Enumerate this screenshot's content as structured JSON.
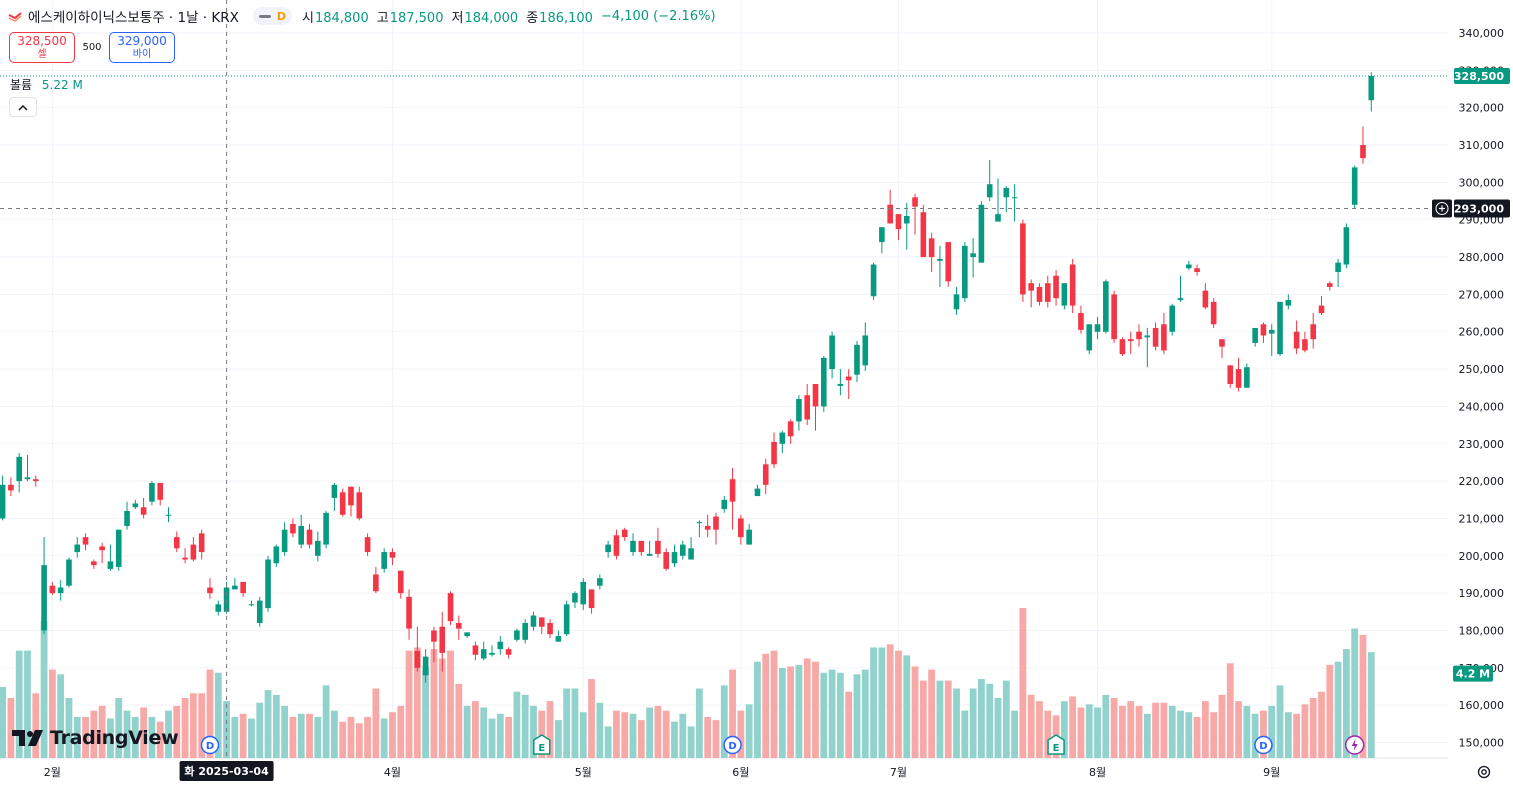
{
  "header": {
    "symbol_title": "에스케이하이닉스보통주 · 1날 · KRX",
    "badge": "D",
    "ohlc": [
      {
        "key": "시",
        "value": "184,800",
        "tone": "up"
      },
      {
        "key": "고",
        "value": "187,500",
        "tone": "up"
      },
      {
        "key": "저",
        "value": "184,000",
        "tone": "up"
      },
      {
        "key": "종",
        "value": "186,100",
        "tone": "up"
      }
    ],
    "change": "−4,100 (−2.16%)"
  },
  "trade": {
    "sell_price": "328,500",
    "sell_label": "셀",
    "quantity": "500",
    "buy_price": "329,000",
    "buy_label": "바이"
  },
  "volume_legend": {
    "label": "볼륨",
    "value": "5.22 M"
  },
  "collapse_icon": "chevron-up-icon",
  "logo_text": "TradingView",
  "colors": {
    "up": "#089981",
    "down": "#f23645",
    "up_vol": "#92d2cc",
    "down_vol": "#f7a9a7",
    "grid": "#f0f3fa",
    "text": "#131722"
  },
  "chart_data": {
    "type": "candlestick",
    "symbol": "에스케이하이닉스보통주",
    "interval": "1날",
    "exchange": "KRX",
    "ylim": [
      146500,
      343000
    ],
    "y_ticks": [
      150000,
      160000,
      170000,
      180000,
      190000,
      200000,
      210000,
      220000,
      230000,
      240000,
      250000,
      260000,
      270000,
      280000,
      290000,
      300000,
      310000,
      320000,
      330000,
      340000
    ],
    "y_tick_labels": [
      "150,000",
      "160,000",
      "170,000",
      "180,000",
      "190,000",
      "200,000",
      "210,000",
      "220,000",
      "230,000",
      "240,000",
      "250,000",
      "260,000",
      "270,000",
      "280,000",
      "290,000",
      "300,000",
      "310,000",
      "320,000",
      "330,000",
      "340,000"
    ],
    "x_labels": [
      {
        "label": "2월",
        "index": 6
      },
      {
        "label": "4월",
        "index": 47
      },
      {
        "label": "5월",
        "index": 70
      },
      {
        "label": "6월",
        "index": 89
      },
      {
        "label": "7월",
        "index": 108
      },
      {
        "label": "8월",
        "index": 132
      },
      {
        "label": "9월",
        "index": 153
      }
    ],
    "crosshair": {
      "index": 27,
      "date_label": "화 2025-03-04",
      "price": 293000,
      "price_label": "293,000"
    },
    "last_price": {
      "value": 328500,
      "label": "328,500"
    },
    "volume_label": "4.2 M",
    "volume_max": 9.5,
    "events": [
      {
        "type": "D",
        "index": 25
      },
      {
        "type": "E",
        "index": 65
      },
      {
        "type": "D",
        "index": 88
      },
      {
        "type": "E",
        "index": 127
      },
      {
        "type": "D",
        "index": 152
      },
      {
        "type": "lightning",
        "index": 163
      }
    ],
    "candles": [
      [
        210000,
        219000,
        221500,
        209500,
        4.5
      ],
      [
        219000,
        217500,
        221000,
        216000,
        3.8
      ],
      [
        220000,
        226500,
        227500,
        217000,
        6.8
      ],
      [
        220500,
        221000,
        227000,
        220000,
        6.8
      ],
      [
        220500,
        220000,
        221500,
        218500,
        4.1
      ],
      [
        180000,
        197500,
        205000,
        179000,
        8.7
      ],
      [
        192000,
        190000,
        193000,
        189500,
        5.6
      ],
      [
        190000,
        191500,
        193500,
        188000,
        5.3
      ],
      [
        192000,
        199000,
        199500,
        191500,
        3.8
      ],
      [
        201000,
        203000,
        205000,
        199500,
        2.6
      ],
      [
        205000,
        203000,
        206000,
        201500,
        2.6
      ],
      [
        198500,
        197500,
        199000,
        196500,
        3.0
      ],
      [
        202500,
        201500,
        203500,
        198000,
        3.3
      ],
      [
        196500,
        198500,
        203000,
        196000,
        2.5
      ],
      [
        197000,
        207000,
        207000,
        196000,
        3.8
      ],
      [
        208000,
        212000,
        214500,
        207000,
        3.0
      ],
      [
        213000,
        214000,
        215000,
        212500,
        2.6
      ],
      [
        213000,
        211000,
        215500,
        210000,
        3.2
      ],
      [
        214500,
        219500,
        220000,
        213500,
        2.6
      ],
      [
        219500,
        215000,
        219500,
        213500,
        2.3
      ],
      [
        211000,
        211000,
        213000,
        209000,
        3.0
      ],
      [
        205000,
        202000,
        206500,
        201000,
        3.3
      ],
      [
        199500,
        199000,
        202000,
        198000,
        3.8
      ],
      [
        203000,
        199000,
        205000,
        198500,
        4.1
      ],
      [
        206000,
        201000,
        207000,
        199000,
        4.1
      ],
      [
        191500,
        190000,
        194000,
        188500,
        5.6
      ],
      [
        185000,
        187000,
        188000,
        184000,
        5.4
      ],
      [
        185000,
        191500,
        193000,
        184500,
        3.6
      ],
      [
        191000,
        192000,
        194000,
        191000,
        2.6
      ],
      [
        193000,
        190000,
        193000,
        189000,
        2.8
      ],
      [
        187000,
        187000,
        188000,
        186500,
        2.5
      ],
      [
        182000,
        188000,
        189000,
        181000,
        3.5
      ],
      [
        186000,
        199000,
        200000,
        185000,
        4.3
      ],
      [
        198000,
        202500,
        203000,
        197000,
        4.0
      ],
      [
        201000,
        207000,
        209000,
        200000,
        3.3
      ],
      [
        208500,
        206000,
        210000,
        205000,
        2.6
      ],
      [
        203000,
        208000,
        211000,
        202000,
        2.8
      ],
      [
        207000,
        203000,
        208500,
        202000,
        2.8
      ],
      [
        200000,
        204000,
        206500,
        198500,
        2.6
      ],
      [
        203000,
        211500,
        212000,
        202000,
        4.6
      ],
      [
        215500,
        219000,
        219500,
        212000,
        3.0
      ],
      [
        217000,
        211000,
        218000,
        210500,
        2.3
      ],
      [
        218500,
        213500,
        218500,
        210500,
        2.6
      ],
      [
        217000,
        210000,
        218500,
        209500,
        2.2
      ],
      [
        205000,
        201000,
        206000,
        200000,
        2.6
      ],
      [
        195000,
        190500,
        197000,
        190000,
        4.4
      ],
      [
        196500,
        201000,
        202000,
        195500,
        2.5
      ],
      [
        201000,
        199500,
        202000,
        197500,
        2.9
      ],
      [
        196000,
        190000,
        196000,
        188500,
        3.3
      ],
      [
        189000,
        180500,
        191000,
        177500,
        6.8
      ],
      [
        174500,
        170000,
        181000,
        169000,
        7.0
      ],
      [
        168000,
        173000,
        175000,
        166000,
        5.8
      ],
      [
        180000,
        177000,
        181000,
        171500,
        6.9
      ],
      [
        181000,
        174000,
        185000,
        169000,
        6.3
      ],
      [
        190000,
        182500,
        190500,
        181500,
        6.8
      ],
      [
        182000,
        180500,
        184000,
        177500,
        4.7
      ],
      [
        178500,
        179500,
        179000,
        178000,
        3.3
      ],
      [
        176000,
        173500,
        177000,
        172000,
        3.6
      ],
      [
        172500,
        175000,
        177000,
        172000,
        3.2
      ],
      [
        173500,
        174000,
        176000,
        173000,
        2.5
      ],
      [
        175000,
        177000,
        178500,
        173500,
        2.8
      ],
      [
        175000,
        173500,
        175500,
        172500,
        2.6
      ],
      [
        177500,
        180000,
        180500,
        177000,
        4.2
      ],
      [
        177500,
        182000,
        183000,
        176500,
        4.0
      ],
      [
        181000,
        184000,
        185000,
        180000,
        3.3
      ],
      [
        183500,
        181000,
        183500,
        179000,
        3.0
      ],
      [
        182000,
        179000,
        183000,
        178000,
        3.6
      ],
      [
        177000,
        178500,
        180000,
        177000,
        2.4
      ],
      [
        179000,
        187000,
        188000,
        178500,
        4.4
      ],
      [
        187500,
        190000,
        190500,
        186000,
        4.4
      ],
      [
        187000,
        193000,
        194000,
        185500,
        2.9
      ],
      [
        191000,
        186000,
        191000,
        184500,
        5.0
      ],
      [
        192000,
        194000,
        195000,
        191000,
        3.5
      ],
      [
        201000,
        203000,
        204000,
        199500,
        2.0
      ],
      [
        205500,
        200000,
        207000,
        199000,
        3.0
      ],
      [
        207000,
        205000,
        207500,
        204000,
        2.9
      ],
      [
        201000,
        204000,
        206000,
        200000,
        2.8
      ],
      [
        204000,
        201000,
        204000,
        200000,
        2.4
      ],
      [
        200000,
        200500,
        204000,
        200000,
        3.2
      ],
      [
        204000,
        200500,
        207500,
        199500,
        3.3
      ],
      [
        201000,
        196500,
        202000,
        196000,
        3.0
      ],
      [
        198000,
        201000,
        203000,
        197000,
        2.3
      ],
      [
        200000,
        203000,
        204000,
        199000,
        2.8
      ],
      [
        199000,
        202000,
        205000,
        199000,
        2.0
      ],
      [
        209000,
        209000,
        209500,
        205000,
        4.4
      ],
      [
        208000,
        207000,
        211000,
        205000,
        2.6
      ],
      [
        210500,
        207000,
        211500,
        203000,
        2.4
      ],
      [
        212500,
        215000,
        216000,
        211500,
        4.6
      ],
      [
        220500,
        214500,
        223500,
        207000,
        5.6
      ],
      [
        210000,
        205000,
        211000,
        203000,
        3.0
      ],
      [
        203000,
        207000,
        208500,
        203000,
        3.4
      ],
      [
        216000,
        218000,
        219000,
        216000,
        6.1
      ],
      [
        224500,
        219000,
        226000,
        216500,
        6.6
      ],
      [
        230500,
        224500,
        233000,
        223500,
        6.8
      ],
      [
        230000,
        233000,
        233500,
        227500,
        5.7
      ],
      [
        236000,
        232000,
        236500,
        230000,
        5.8
      ],
      [
        236000,
        242000,
        243000,
        233500,
        5.9
      ],
      [
        243000,
        236500,
        246000,
        235000,
        6.3
      ],
      [
        246000,
        240000,
        245000,
        233500,
        6.1
      ],
      [
        240000,
        253000,
        253500,
        238500,
        5.4
      ],
      [
        250000,
        259000,
        260000,
        247500,
        5.6
      ],
      [
        245500,
        246000,
        250000,
        243000,
        5.4
      ],
      [
        248000,
        247000,
        250000,
        242000,
        4.2
      ],
      [
        248500,
        256500,
        257500,
        246500,
        5.3
      ],
      [
        251000,
        259000,
        262500,
        249500,
        5.6
      ],
      [
        269500,
        278000,
        278500,
        268500,
        7.0
      ],
      [
        284000,
        288000,
        287500,
        281000,
        7.0
      ],
      [
        294000,
        289000,
        298000,
        289000,
        7.2
      ],
      [
        291500,
        287500,
        289500,
        284500,
        6.8
      ],
      [
        289000,
        291000,
        294500,
        282000,
        6.5
      ],
      [
        296000,
        293500,
        297000,
        286000,
        5.8
      ],
      [
        292000,
        280000,
        294000,
        283500,
        4.9
      ],
      [
        285000,
        280000,
        286500,
        276000,
        5.6
      ],
      [
        279000,
        279500,
        283000,
        272000,
        4.9
      ],
      [
        284000,
        273500,
        282000,
        272000,
        4.9
      ],
      [
        266000,
        270000,
        272000,
        264500,
        4.4
      ],
      [
        269000,
        283000,
        284000,
        268000,
        3.0
      ],
      [
        280000,
        281000,
        285000,
        274500,
        4.4
      ],
      [
        278500,
        294000,
        295000,
        278500,
        5.0
      ],
      [
        296000,
        299500,
        306000,
        295000,
        4.7
      ],
      [
        289500,
        291500,
        301000,
        290500,
        3.8
      ],
      [
        296000,
        298500,
        299000,
        292000,
        4.9
      ],
      [
        296000,
        296000,
        299500,
        289500,
        3.0
      ],
      [
        289000,
        270000,
        290000,
        268000,
        9.5
      ],
      [
        273000,
        271000,
        274000,
        266500,
        4.0
      ],
      [
        272000,
        268000,
        273000,
        267000,
        3.6
      ],
      [
        273000,
        268000,
        275000,
        266500,
        3.0
      ],
      [
        275000,
        269000,
        276500,
        267000,
        2.7
      ],
      [
        267000,
        273000,
        273000,
        266000,
        3.6
      ],
      [
        278000,
        267000,
        279500,
        265000,
        3.9
      ],
      [
        265000,
        260500,
        267000,
        259500,
        3.2
      ],
      [
        255000,
        262000,
        262000,
        254000,
        3.4
      ],
      [
        260000,
        262000,
        264000,
        258000,
        3.2
      ],
      [
        260000,
        273500,
        274000,
        259500,
        4.0
      ],
      [
        270000,
        258000,
        271000,
        257000,
        3.8
      ],
      [
        258000,
        254000,
        258500,
        253500,
        3.3
      ],
      [
        258000,
        257500,
        260000,
        254000,
        3.6
      ],
      [
        260000,
        258000,
        262000,
        256000,
        3.3
      ],
      [
        258500,
        259000,
        261000,
        250500,
        2.8
      ],
      [
        261000,
        256000,
        262500,
        255000,
        3.5
      ],
      [
        262000,
        255000,
        265000,
        254000,
        3.5
      ],
      [
        260000,
        267000,
        267500,
        259000,
        3.3
      ],
      [
        268500,
        269000,
        275000,
        268000,
        3.0
      ],
      [
        277000,
        278000,
        279000,
        276500,
        2.9
      ],
      [
        277000,
        276000,
        278000,
        275000,
        2.6
      ],
      [
        271000,
        266500,
        273000,
        266000,
        3.6
      ],
      [
        268000,
        262000,
        269000,
        261000,
        2.9
      ],
      [
        258000,
        256000,
        257000,
        253000,
        4.0
      ],
      [
        251000,
        246000,
        251000,
        245000,
        6.0
      ],
      [
        250000,
        245000,
        253000,
        244000,
        3.6
      ],
      [
        245000,
        250500,
        251500,
        245000,
        3.3
      ],
      [
        257000,
        261000,
        261000,
        256000,
        2.8
      ],
      [
        262000,
        259000,
        262500,
        257000,
        3.0
      ],
      [
        259500,
        260500,
        262000,
        253500,
        3.3
      ],
      [
        254000,
        268000,
        268000,
        253500,
        4.6
      ],
      [
        267000,
        268500,
        270000,
        266000,
        2.9
      ],
      [
        260000,
        255500,
        263000,
        254000,
        2.8
      ],
      [
        258000,
        255000,
        260000,
        254500,
        3.4
      ],
      [
        262000,
        258000,
        265000,
        255500,
        3.8
      ],
      [
        267000,
        265000,
        269500,
        264500,
        4.2
      ],
      [
        273000,
        272000,
        273500,
        271000,
        5.9
      ],
      [
        276000,
        278500,
        279500,
        272000,
        6.1
      ],
      [
        278000,
        288000,
        289000,
        277000,
        6.9
      ],
      [
        294000,
        304000,
        304500,
        293000,
        8.2
      ],
      [
        310000,
        306500,
        315000,
        305000,
        7.8
      ],
      [
        322000,
        328500,
        329500,
        319000,
        6.7
      ]
    ]
  }
}
